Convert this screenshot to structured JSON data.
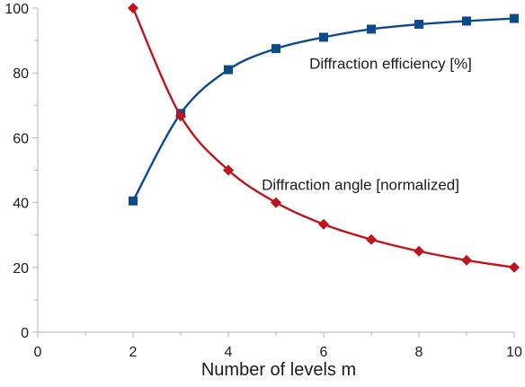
{
  "chart_data": {
    "type": "line",
    "xlabel": "Number of levels m",
    "ylabel": "",
    "xlim": [
      0,
      10
    ],
    "ylim": [
      0,
      100
    ],
    "x_ticks": [
      0,
      2,
      4,
      6,
      8,
      10
    ],
    "x_minor_ticks": [
      1,
      3,
      5,
      7,
      9
    ],
    "y_ticks": [
      0,
      20,
      40,
      60,
      80,
      100
    ],
    "y_minor_ticks": [
      10,
      30,
      50,
      70,
      90
    ],
    "grid": false,
    "series": [
      {
        "name": "Diffraction efficiency [%]",
        "color": "#0b4a8b",
        "marker": "square",
        "smooth": true,
        "label_anchor": [
          5.7,
          83
        ],
        "x": [
          2,
          3,
          4,
          5,
          6,
          7,
          8,
          9,
          10
        ],
        "y": [
          40.5,
          67.5,
          81,
          87.5,
          91,
          93.5,
          95,
          96,
          96.8
        ]
      },
      {
        "name": "Diffraction angle [normalized]",
        "color": "#c0141c",
        "marker": "diamond",
        "smooth": true,
        "label_anchor": [
          4.7,
          45.5
        ],
        "x": [
          2,
          3,
          4,
          5,
          6,
          7,
          8,
          9,
          10
        ],
        "y": [
          100,
          66.7,
          50,
          40,
          33.3,
          28.6,
          25,
          22.2,
          20
        ]
      }
    ]
  }
}
